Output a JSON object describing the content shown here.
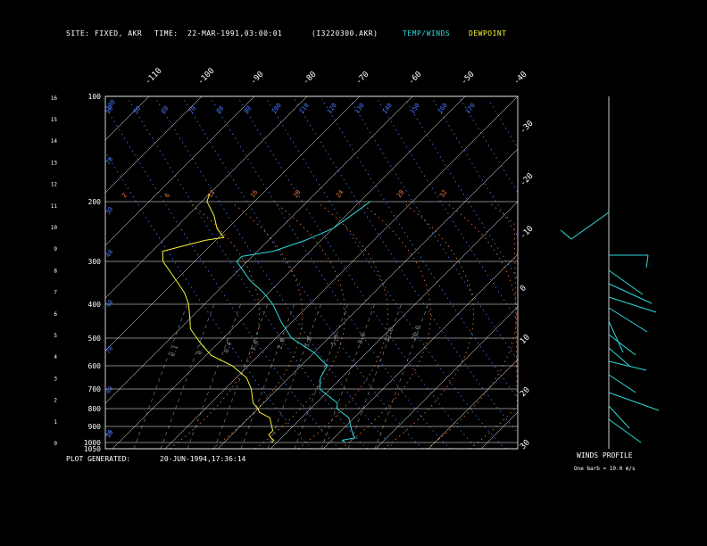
{
  "header": {
    "site_label": "SITE:",
    "site_value": "FIXED, AKR",
    "time_label": "TIME:",
    "time_value": "22-MAR-1991,03:00:01",
    "file_id": "(I3220300.AKR)",
    "legend_temp_winds": "TEMP/WINDS",
    "legend_dewpoint": "DEWPOINT"
  },
  "footer": {
    "generated_label": "PLOT GENERATED:",
    "generated_value": "20-JUN-1994,17:36:14",
    "winds_profile_label": "WINDS PROFILE",
    "barb_note": "One barb = 10.0 m/s"
  },
  "colors": {
    "background": "#000000",
    "frame": "#ffffff",
    "isotherm": "#ffffff",
    "dry_adiabat": "#4a78ff",
    "moist_adiabat": "#ff7a3c",
    "mixing_ratio": "#8c8c8c",
    "temperature": "#2fd8d8",
    "dewpoint": "#f5f538",
    "header_label": "#ffffff",
    "legend_temp": "#2fd8d8",
    "legend_dew": "#f5f538"
  },
  "chart_data": {
    "type": "skew-t",
    "pressure_levels": [
      100,
      200,
      300,
      400,
      500,
      600,
      700,
      800,
      900,
      1000,
      1050
    ],
    "pressure_tick_labels": [
      "100",
      "200",
      "300",
      "400",
      "500",
      "600",
      "700",
      "800",
      "900",
      "1000",
      "1050"
    ],
    "height_tick_labels": [
      "0",
      "1",
      "2",
      "3",
      "4",
      "5",
      "6",
      "7",
      "8",
      "9",
      "10",
      "11",
      "12",
      "13",
      "14",
      "15",
      "16"
    ],
    "isotherm_labels_top": [
      "-110",
      "-100",
      "-90",
      "-80",
      "-70",
      "-60",
      "-50",
      "-40"
    ],
    "isotherm_labels_right": [
      "-30",
      "-20",
      "-10",
      "0",
      "10",
      "20",
      "30"
    ],
    "dry_adiabat_labels": [
      "90",
      "50",
      "60",
      "70",
      "80",
      "90",
      "100",
      "110",
      "120",
      "130",
      "140",
      "150",
      "160",
      "170"
    ],
    "moist_adiabat_labels": [
      "2",
      "6",
      "12",
      "16",
      "20",
      "24",
      "28",
      "32"
    ],
    "mixing_ratio_labels": [
      "0.1",
      "0.2",
      "0.4",
      "1.0",
      "2.0",
      "3.0",
      "5.0",
      "8.0",
      "12.0",
      "20.0"
    ],
    "left_axis_labels": [
      "100",
      "70",
      "30",
      "40",
      "40",
      "70",
      "40",
      "50",
      "35"
    ],
    "series": [
      {
        "name": "TEMP/WINDS",
        "pressure": [
          1000,
          985,
          970,
          950,
          925,
          900,
          850,
          800,
          770,
          700,
          650,
          600,
          550,
          500,
          450,
          400,
          370,
          340,
          300,
          290,
          280,
          260,
          240,
          220,
          200
        ],
        "temperature": [
          -7,
          -8,
          -6,
          -7,
          -8,
          -9,
          -11,
          -15,
          -16,
          -22,
          -24,
          -25,
          -30,
          -37,
          -42,
          -47,
          -51,
          -56,
          -62,
          -62,
          -57,
          -53,
          -50,
          -49,
          -48
        ]
      },
      {
        "name": "DEWPOINT",
        "pressure": [
          1000,
          985,
          970,
          950,
          925,
          900,
          850,
          820,
          800,
          770,
          700,
          650,
          600,
          560,
          520,
          500,
          470,
          440,
          400,
          370,
          340,
          300,
          280,
          260,
          255,
          240,
          220,
          200,
          190
        ],
        "dewpoint": [
          -21,
          -21,
          -22,
          -23,
          -23,
          -24,
          -26,
          -29,
          -30,
          -32,
          -35,
          -38,
          -43,
          -49,
          -53,
          -55,
          -58,
          -60,
          -63,
          -66,
          -70,
          -76,
          -78,
          -72,
          -69,
          -72,
          -75,
          -79,
          -80
        ]
      }
    ]
  }
}
